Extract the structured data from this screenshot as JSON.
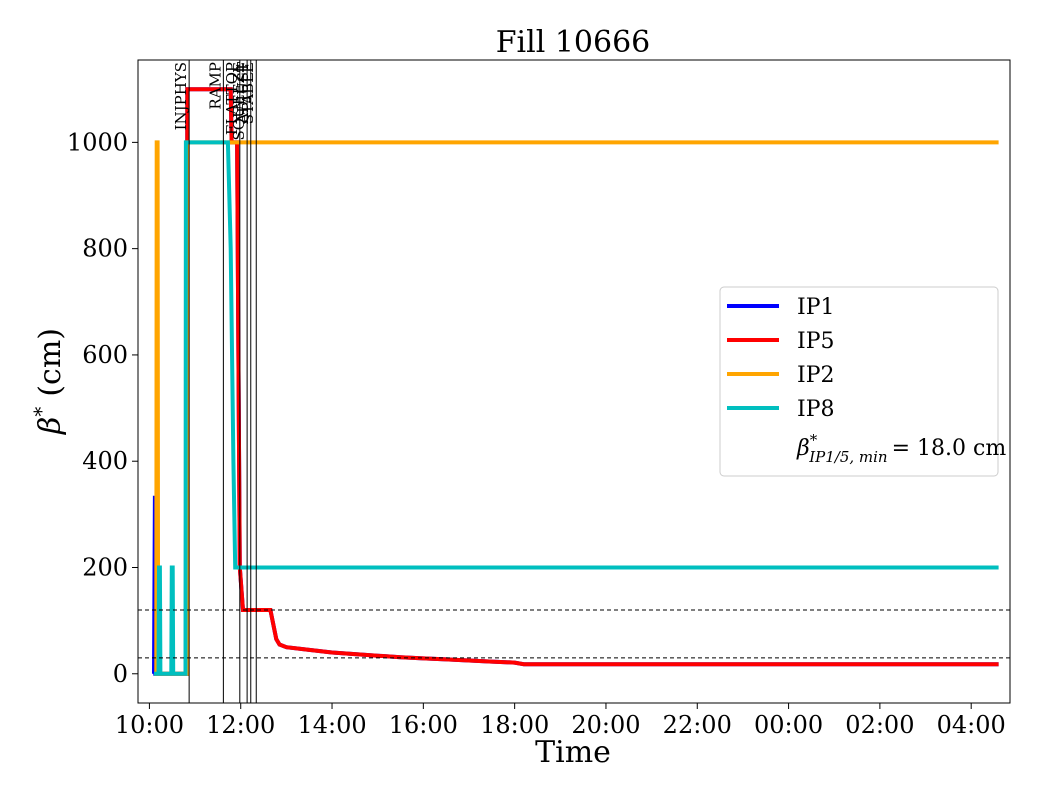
{
  "chart_data": {
    "type": "line",
    "title": "Fill 10666",
    "xlabel": "Time",
    "ylabel_symbol": "β",
    "ylabel_sup": "*",
    "ylabel_unit": "(cm)",
    "xlim_hours": [
      9.75,
      28.85
    ],
    "ylim": [
      -55,
      1155
    ],
    "x_ticks": [
      {
        "hour": 10,
        "label": "10:00"
      },
      {
        "hour": 12,
        "label": "12:00"
      },
      {
        "hour": 14,
        "label": "14:00"
      },
      {
        "hour": 16,
        "label": "16:00"
      },
      {
        "hour": 18,
        "label": "18:00"
      },
      {
        "hour": 20,
        "label": "20:00"
      },
      {
        "hour": 22,
        "label": "22:00"
      },
      {
        "hour": 24,
        "label": "00:00"
      },
      {
        "hour": 26,
        "label": "02:00"
      },
      {
        "hour": 28,
        "label": "04:00"
      }
    ],
    "y_ticks": [
      0,
      200,
      400,
      600,
      800,
      1000
    ],
    "grid": false,
    "legend_position": "center-right",
    "phases": [
      {
        "name": "INJPHYS",
        "hour": 10.87
      },
      {
        "name": "RAMP",
        "hour": 11.62
      },
      {
        "name": "FLATTOP",
        "hour": 11.98
      },
      {
        "name": "SQUEEZE",
        "hour": 12.14
      },
      {
        "name": "ADJUST",
        "hour": 12.22
      },
      {
        "name": "STABLE",
        "hour": 12.34
      }
    ],
    "hlines": [
      120,
      30
    ],
    "series": [
      {
        "name": "IP1",
        "color": "#0000ff",
        "points": [
          [
            10.1,
            0
          ],
          [
            10.12,
            335
          ],
          [
            10.13,
            0
          ],
          [
            10.2,
            0
          ],
          [
            10.82,
            0
          ],
          [
            10.83,
            1100
          ],
          [
            11.78,
            1100
          ],
          [
            11.8,
            1000
          ],
          [
            11.92,
            1000
          ],
          [
            11.95,
            600
          ],
          [
            11.98,
            200
          ],
          [
            12.05,
            120
          ],
          [
            12.1,
            120
          ],
          [
            12.65,
            120
          ],
          [
            12.78,
            65
          ],
          [
            12.85,
            55
          ],
          [
            13,
            50
          ],
          [
            13.5,
            45
          ],
          [
            14,
            40
          ],
          [
            14.5,
            37
          ],
          [
            15,
            34
          ],
          [
            15.5,
            31
          ],
          [
            16,
            29
          ],
          [
            16.5,
            27
          ],
          [
            17,
            25
          ],
          [
            17.5,
            23
          ],
          [
            18,
            21
          ],
          [
            18.2,
            18
          ],
          [
            28.6,
            18
          ]
        ]
      },
      {
        "name": "IP5",
        "color": "#ff0000",
        "points": [
          [
            10.1,
            0
          ],
          [
            10.2,
            0
          ],
          [
            10.82,
            0
          ],
          [
            10.83,
            1100
          ],
          [
            11.78,
            1100
          ],
          [
            11.8,
            1000
          ],
          [
            11.92,
            1000
          ],
          [
            11.95,
            600
          ],
          [
            11.98,
            200
          ],
          [
            12.05,
            120
          ],
          [
            12.1,
            120
          ],
          [
            12.65,
            120
          ],
          [
            12.78,
            65
          ],
          [
            12.85,
            55
          ],
          [
            13,
            50
          ],
          [
            13.5,
            45
          ],
          [
            14,
            40
          ],
          [
            14.5,
            37
          ],
          [
            15,
            34
          ],
          [
            15.5,
            31
          ],
          [
            16,
            29
          ],
          [
            16.5,
            27
          ],
          [
            17,
            25
          ],
          [
            17.5,
            23
          ],
          [
            18,
            21
          ],
          [
            18.2,
            18
          ],
          [
            28.6,
            18
          ]
        ]
      },
      {
        "name": "IP2",
        "color": "#ffa500",
        "points": [
          [
            10.1,
            0
          ],
          [
            10.15,
            0
          ],
          [
            10.16,
            1000
          ],
          [
            10.18,
            1000
          ],
          [
            10.19,
            0
          ],
          [
            10.82,
            0
          ],
          [
            10.83,
            1000
          ],
          [
            28.6,
            1000
          ]
        ]
      },
      {
        "name": "IP8",
        "color": "#00bfbf",
        "points": [
          [
            10.1,
            0
          ],
          [
            10.2,
            0
          ],
          [
            10.21,
            200
          ],
          [
            10.23,
            200
          ],
          [
            10.24,
            0
          ],
          [
            10.48,
            0
          ],
          [
            10.49,
            200
          ],
          [
            10.51,
            200
          ],
          [
            10.52,
            0
          ],
          [
            10.79,
            0
          ],
          [
            10.8,
            1000
          ],
          [
            11.72,
            1000
          ],
          [
            11.78,
            800
          ],
          [
            11.84,
            400
          ],
          [
            11.88,
            200
          ],
          [
            28.6,
            200
          ]
        ]
      }
    ],
    "legend": {
      "entries": [
        "IP1",
        "IP5",
        "IP2",
        "IP8"
      ],
      "beta_min_symbol": "β",
      "beta_min_sup": "*",
      "beta_min_sub": "IP1/5, min",
      "beta_min_value": "= 18.0 cm"
    }
  }
}
